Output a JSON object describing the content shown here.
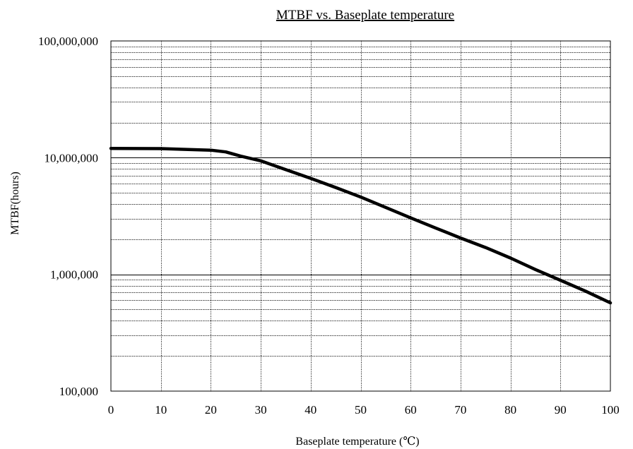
{
  "chart_data": {
    "type": "line",
    "title": "MTBF vs. Baseplate temperature",
    "xlabel": "Baseplate temperature (℃)",
    "ylabel": "MTBF(hours)",
    "x_scale": "linear",
    "y_scale": "log",
    "xlim": [
      0,
      100
    ],
    "ylim": [
      100000,
      100000000
    ],
    "grid": true,
    "x_ticks": [
      0,
      10,
      20,
      30,
      40,
      50,
      60,
      70,
      80,
      90,
      100
    ],
    "x_tick_labels": [
      "0",
      "10",
      "20",
      "30",
      "40",
      "50",
      "60",
      "70",
      "80",
      "90",
      "100"
    ],
    "y_ticks": [
      100000,
      1000000,
      10000000,
      100000000
    ],
    "y_tick_labels": [
      "100,000",
      "1,000,000",
      "10,000,000",
      "100,000,000"
    ],
    "series": [
      {
        "color": "#000000",
        "x": [
          0,
          10,
          20,
          23,
          26,
          30,
          35,
          40,
          45,
          50,
          55,
          60,
          65,
          70,
          75,
          80,
          85,
          90,
          95,
          100
        ],
        "y": [
          12000000,
          11950000,
          11600000,
          11200000,
          10300000,
          9400000,
          7900000,
          6650000,
          5550000,
          4600000,
          3750000,
          3050000,
          2500000,
          2050000,
          1700000,
          1380000,
          1100000,
          890000,
          720000,
          570000
        ]
      }
    ]
  }
}
